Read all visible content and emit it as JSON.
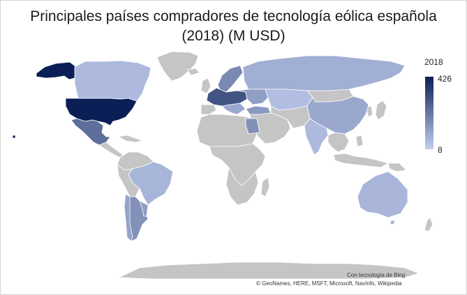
{
  "title_line1": "Principales países compradores de tecnología eólica española",
  "title_line2": "(2018) (M USD)",
  "legend": {
    "title": "2018",
    "max_label": "426",
    "min_label": "8",
    "color_max": "#0b1f56",
    "color_min": "#c3cff0"
  },
  "colors": {
    "no_data": "#c5c5c5",
    "background": "#ffffff"
  },
  "attribution": {
    "line1": "Con tecnología de Bing",
    "line2": "© GeoNames, HERE, MSFT, Microsoft, NavInfo, Wikipedia"
  }
}
